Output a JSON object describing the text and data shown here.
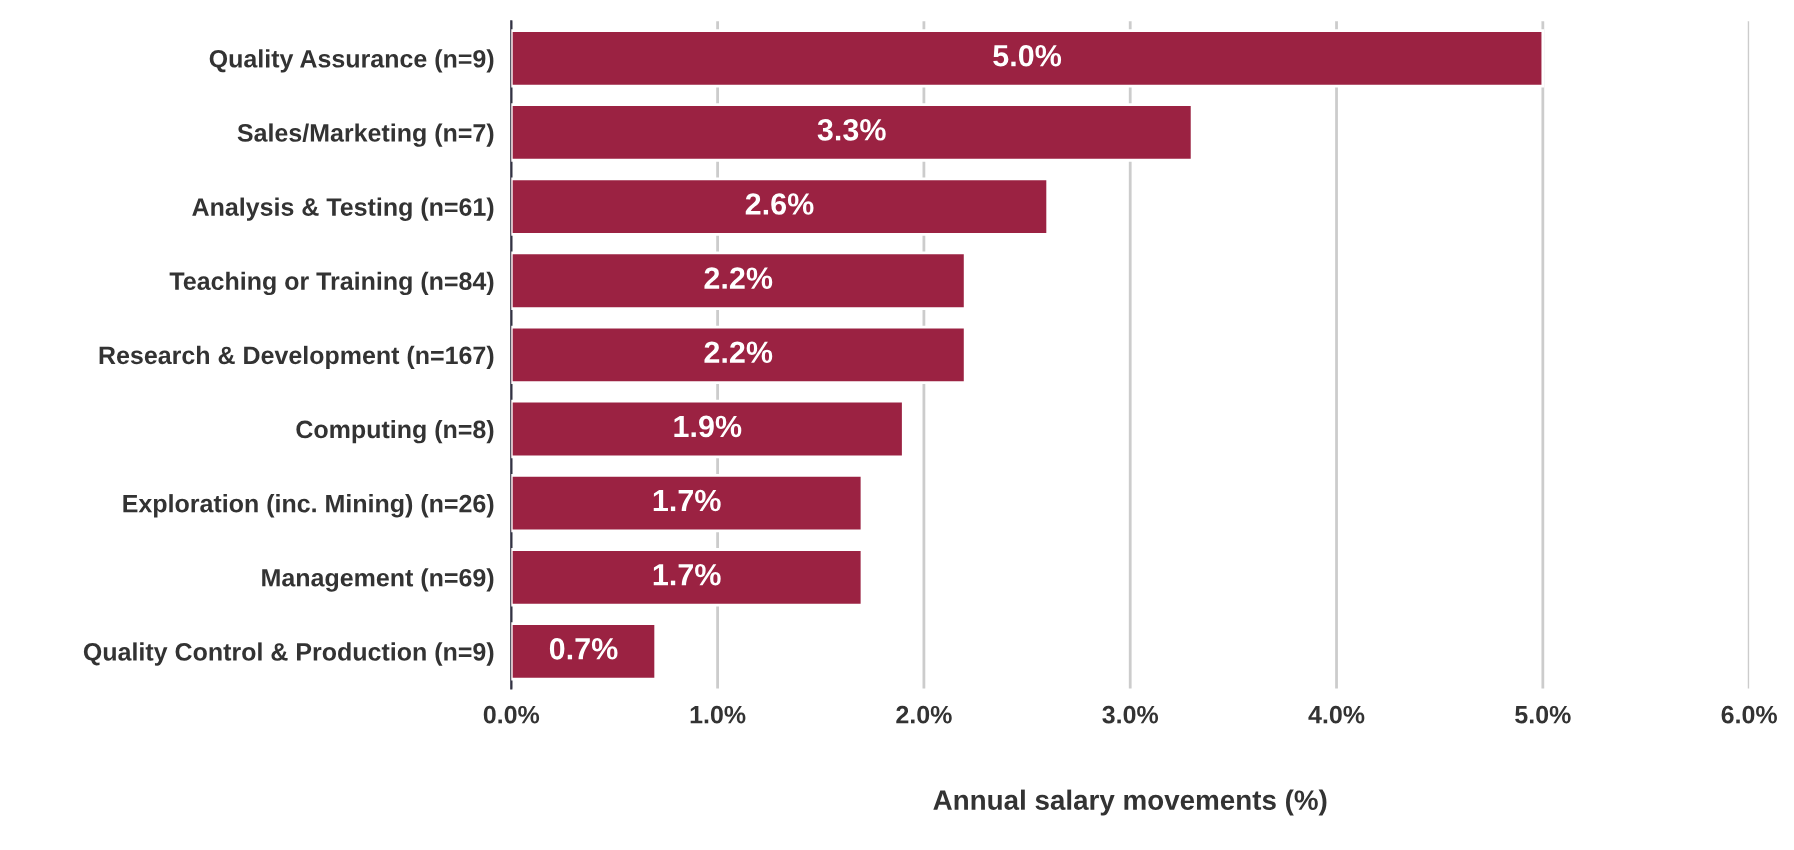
{
  "chart_data": {
    "type": "bar",
    "orientation": "horizontal",
    "categories": [
      "Quality Assurance (n=9)",
      "Sales/Marketing (n=7)",
      "Analysis & Testing (n=61)",
      "Teaching or Training (n=84)",
      "Research & Development (n=167)",
      "Computing (n=8)",
      "Exploration (inc. Mining) (n=26)",
      "Management (n=69)",
      "Quality Control & Production (n=9)"
    ],
    "values": [
      5.0,
      3.3,
      2.6,
      2.2,
      2.2,
      1.9,
      1.7,
      1.7,
      0.7
    ],
    "value_labels": [
      "5.0%",
      "3.3%",
      "2.6%",
      "2.2%",
      "2.2%",
      "1.9%",
      "1.7%",
      "1.7%",
      "0.7%"
    ],
    "color": "#9b2242",
    "xlim": [
      0,
      6
    ],
    "xticks": [
      {
        "value": 0,
        "label": "0.0%"
      },
      {
        "value": 1,
        "label": "1.0%"
      },
      {
        "value": 2,
        "label": "2.0%"
      },
      {
        "value": 3,
        "label": "3.0%"
      },
      {
        "value": 4,
        "label": "4.0%"
      },
      {
        "value": 5,
        "label": "5.0%"
      },
      {
        "value": 6,
        "label": "6.0%"
      }
    ],
    "xlabel": "Annual salary movements (%)",
    "grid": "x",
    "legend": false
  }
}
